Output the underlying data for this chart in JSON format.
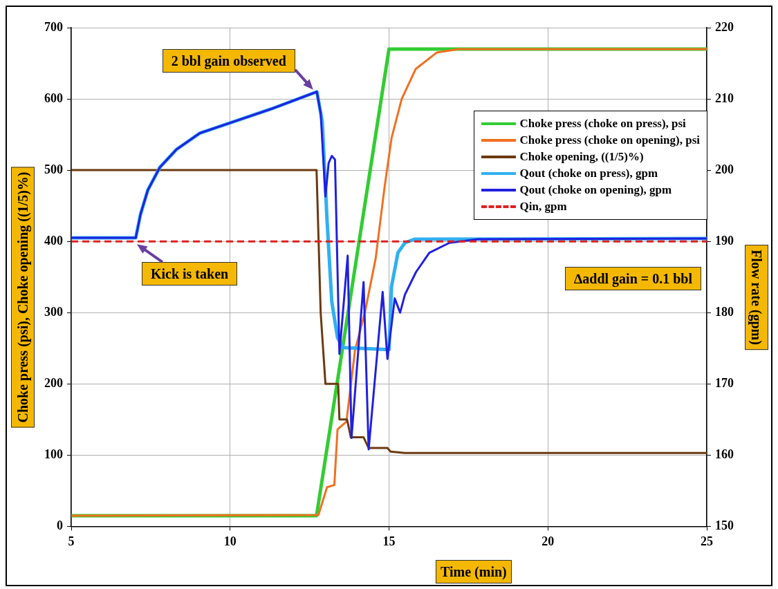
{
  "chart_data": {
    "type": "line",
    "xlabel": "Time (min)",
    "ylabel": "Choke press (psi), Choke opening ((1/5)%)",
    "y2label": "Flow rate (gpm)",
    "xlim": [
      5,
      25
    ],
    "xticks": [
      5,
      10,
      15,
      20,
      25
    ],
    "ylim": [
      0,
      700
    ],
    "yticks": [
      0,
      100,
      200,
      300,
      400,
      500,
      600,
      700
    ],
    "y2lim": [
      150,
      220
    ],
    "y2ticks": [
      150,
      160,
      170,
      180,
      190,
      200,
      210,
      220
    ],
    "grid": true,
    "legend": "right",
    "marker": "none",
    "annotations": [
      {
        "text": "2 bbl gain observed",
        "x": 12.7,
        "y": 610
      },
      {
        "text": "Kick is taken",
        "x": 7.0,
        "y": 400
      },
      "∆addl gain = 0.1 bbl"
    ],
    "series": [
      {
        "name": "Choke press (choke on press), psi",
        "color": "#33cc33",
        "x": [
          5,
          12.72,
          15,
          25
        ],
        "values": [
          15,
          15,
          670,
          670
        ]
      },
      {
        "name": "Choke press (choke on opening), psi",
        "color": "#f07020",
        "x": [
          5,
          12.78,
          13.05,
          13.28,
          13.38,
          13.66,
          13.93,
          14.25,
          14.58,
          14.86,
          15.08,
          15.4,
          15.84,
          16.5,
          17.2,
          25
        ],
        "values": [
          15,
          16,
          55,
          58,
          136,
          147,
          247,
          302,
          376,
          476,
          545,
          600,
          642,
          665,
          670,
          670
        ]
      },
      {
        "name": "Choke opening, ((1/5)%)",
        "color": "#6b3a10",
        "x": [
          5,
          12.72,
          12.85,
          13.0,
          13.4,
          13.44,
          13.68,
          13.8,
          14.2,
          14.36,
          14.95,
          15.05,
          15.5,
          25
        ],
        "values": [
          500,
          500,
          300,
          200,
          200,
          150,
          150,
          125,
          125,
          110,
          110,
          105,
          103,
          103
        ]
      },
      {
        "name": "Qout (choke on press), gpm",
        "color": "#30b0f0",
        "axis": "y2",
        "x": [
          5,
          7.03,
          7.18,
          7.41,
          7.79,
          8.31,
          9.05,
          10.04,
          11.3,
          12.73,
          12.9,
          13.05,
          13.2,
          13.38,
          13.55,
          15.0,
          15.08,
          15.28,
          15.5,
          15.8,
          25
        ],
        "values": [
          190.5,
          190.5,
          193.8,
          197.2,
          200.4,
          202.9,
          205.2,
          206.7,
          208.6,
          211.0,
          206.8,
          193,
          181.5,
          176.5,
          175.1,
          174.8,
          183.7,
          188.4,
          189.8,
          190.3,
          190.4
        ]
      },
      {
        "name": "Qout (choke on opening), gpm",
        "color": "#2020e0",
        "axis": "y2",
        "x": [
          5,
          7.03,
          7.18,
          7.41,
          7.79,
          8.31,
          9.05,
          10.04,
          11.3,
          12.73,
          12.85,
          13.0,
          13.1,
          13.2,
          13.3,
          13.44,
          13.7,
          13.82,
          14.2,
          14.36,
          14.8,
          14.95,
          15.18,
          15.35,
          15.5,
          15.85,
          16.27,
          16.9,
          17.8,
          25
        ],
        "values": [
          190.5,
          190.5,
          193.8,
          197.2,
          200.4,
          202.9,
          205.2,
          206.7,
          208.6,
          211.0,
          208,
          196.3,
          201,
          202,
          201.5,
          174.2,
          188,
          162.4,
          184.3,
          160.8,
          182.9,
          173.5,
          182,
          180,
          182.5,
          185.7,
          188.4,
          189.8,
          190.3,
          190.4
        ]
      },
      {
        "name": "Qin, gpm",
        "color": "#e02020",
        "axis": "y2",
        "line_style": "dashed",
        "x": [
          5,
          25
        ],
        "values": [
          190,
          190
        ]
      }
    ]
  }
}
